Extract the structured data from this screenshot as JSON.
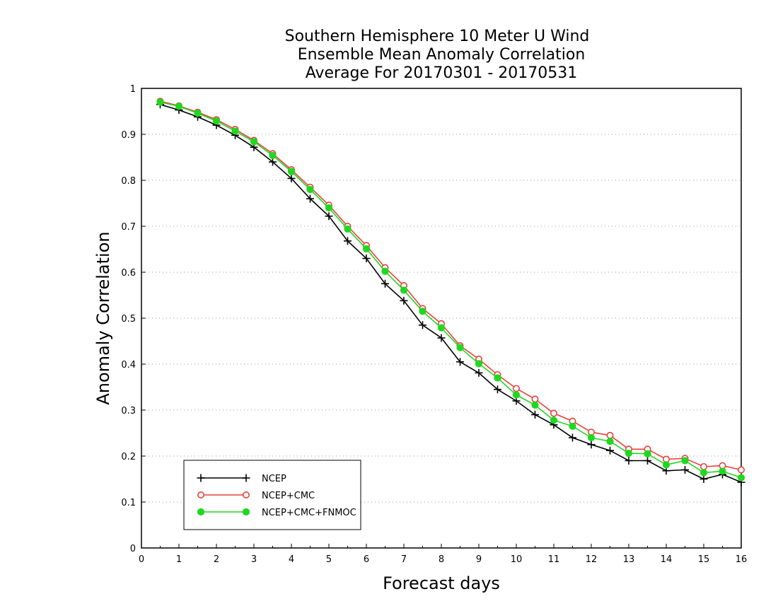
{
  "chart_data": {
    "type": "line",
    "title": [
      "Southern Hemisphere 10 Meter U Wind",
      "Ensemble Mean Anomaly Correlation",
      "Average For 20170301 - 20170531"
    ],
    "xlabel": "Forecast days",
    "ylabel": "Anomaly Correlation",
    "xlim": [
      0,
      16
    ],
    "ylim": [
      0,
      1
    ],
    "xticks": [
      "0",
      "1",
      "2",
      "3",
      "4",
      "5",
      "6",
      "7",
      "8",
      "9",
      "10",
      "11",
      "12",
      "13",
      "14",
      "15",
      "16"
    ],
    "yticks": [
      "0",
      "0.1",
      "0.2",
      "0.3",
      "0.4",
      "0.5",
      "0.6",
      "0.7",
      "0.8",
      "0.9",
      "1"
    ],
    "grid": "horizontal-dotted",
    "legend_position": "bottom-left",
    "x": [
      0.5,
      1,
      1.5,
      2,
      2.5,
      3,
      3.5,
      4,
      4.5,
      5,
      5.5,
      6,
      6.5,
      7,
      7.5,
      8,
      8.5,
      9,
      9.5,
      10,
      10.5,
      11,
      11.5,
      12,
      12.5,
      13,
      13.5,
      14,
      14.5,
      15,
      15.5,
      16
    ],
    "series": [
      {
        "name": "NCEP",
        "color": "#000000",
        "marker": "plus",
        "values": [
          0.965,
          0.953,
          0.938,
          0.92,
          0.898,
          0.872,
          0.84,
          0.804,
          0.76,
          0.722,
          0.668,
          0.63,
          0.575,
          0.538,
          0.485,
          0.457,
          0.405,
          0.381,
          0.345,
          0.32,
          0.29,
          0.268,
          0.24,
          0.225,
          0.212,
          0.19,
          0.19,
          0.168,
          0.17,
          0.15,
          0.16,
          0.143
        ]
      },
      {
        "name": "NCEP+CMC",
        "color": "#e8403c",
        "marker": "open-circle",
        "values": [
          0.972,
          0.962,
          0.948,
          0.932,
          0.911,
          0.887,
          0.858,
          0.823,
          0.785,
          0.746,
          0.7,
          0.658,
          0.61,
          0.571,
          0.521,
          0.488,
          0.44,
          0.411,
          0.377,
          0.347,
          0.324,
          0.293,
          0.276,
          0.252,
          0.245,
          0.215,
          0.215,
          0.193,
          0.195,
          0.177,
          0.179,
          0.17
        ]
      },
      {
        "name": "NCEP+CMC+FNMOC",
        "color": "#1fd81f",
        "marker": "filled-circle",
        "values": [
          0.97,
          0.961,
          0.946,
          0.929,
          0.907,
          0.884,
          0.854,
          0.819,
          0.78,
          0.74,
          0.694,
          0.651,
          0.602,
          0.561,
          0.515,
          0.479,
          0.436,
          0.401,
          0.37,
          0.333,
          0.311,
          0.278,
          0.265,
          0.24,
          0.232,
          0.206,
          0.205,
          0.181,
          0.19,
          0.164,
          0.167,
          0.153
        ]
      }
    ]
  }
}
